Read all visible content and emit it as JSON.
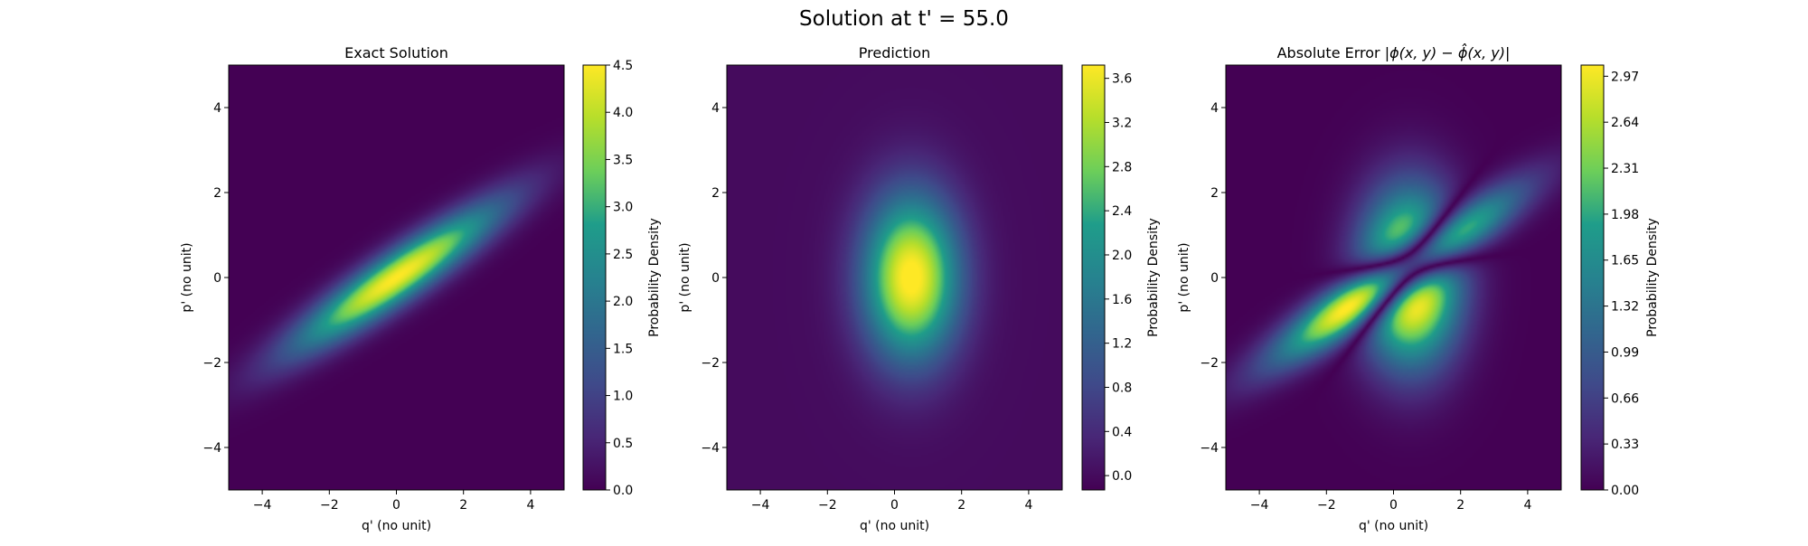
{
  "figure": {
    "suptitle": "Solution at t' = 55.0",
    "colormap": "viridis",
    "viridis_stops": [
      "#440154",
      "#482777",
      "#3f4a8a",
      "#31678e",
      "#26838f",
      "#1f9d8a",
      "#6cce5a",
      "#b6de2b",
      "#fee825"
    ]
  },
  "chart_data": [
    {
      "type": "heatmap",
      "title": "Exact Solution",
      "xlabel": "q' (no unit)",
      "ylabel": "p' (no unit)",
      "xlim": [
        -5,
        5
      ],
      "ylim": [
        -5,
        5
      ],
      "xticks": [
        -4,
        -2,
        0,
        2,
        4
      ],
      "yticks": [
        -4,
        -2,
        0,
        2,
        4
      ],
      "xtick_labels": [
        "−4",
        "−2",
        "0",
        "2",
        "4"
      ],
      "ytick_labels": [
        "−4",
        "−2",
        "0",
        "2",
        "4"
      ],
      "colorbar": {
        "label": "Probability Density",
        "range": [
          0.0,
          4.5
        ],
        "ticks": [
          0.0,
          0.5,
          1.0,
          1.5,
          2.0,
          2.5,
          3.0,
          3.5,
          4.0,
          4.5
        ],
        "tick_labels": [
          "0.0",
          "0.5",
          "1.0",
          "1.5",
          "2.0",
          "2.5",
          "3.0",
          "3.5",
          "4.0",
          "4.5"
        ]
      },
      "field": {
        "kind": "gaussian_sum",
        "components": [
          {
            "amp": 4.5,
            "cx": 0.0,
            "cy": 0.0,
            "sigma_major": 2.4,
            "sigma_minor": 0.42,
            "angle_deg": 28
          }
        ]
      }
    },
    {
      "type": "heatmap",
      "title": "Prediction",
      "xlabel": "q' (no unit)",
      "ylabel": "p' (no unit)",
      "xlim": [
        -5,
        5
      ],
      "ylim": [
        -5,
        5
      ],
      "xticks": [
        -4,
        -2,
        0,
        2,
        4
      ],
      "yticks": [
        -4,
        -2,
        0,
        2,
        4
      ],
      "xtick_labels": [
        "−4",
        "−2",
        "0",
        "2",
        "4"
      ],
      "ytick_labels": [
        "−4",
        "−2",
        "0",
        "2",
        "4"
      ],
      "colorbar": {
        "label": "Probability Density",
        "range": [
          -0.13,
          3.72
        ],
        "ticks": [
          0.0,
          0.4,
          0.8,
          1.2,
          1.6,
          2.0,
          2.4,
          2.8,
          3.2,
          3.6
        ],
        "tick_labels": [
          "0.0",
          "0.4",
          "0.8",
          "1.2",
          "1.6",
          "2.0",
          "2.4",
          "2.8",
          "3.2",
          "3.6"
        ]
      },
      "field": {
        "kind": "gaussian_sum",
        "components": [
          {
            "amp": 3.85,
            "cx": 0.5,
            "cy": 0.0,
            "sigma_major": 1.35,
            "sigma_minor": 1.0,
            "angle_deg": 90
          }
        ]
      }
    },
    {
      "type": "heatmap",
      "title": "Absolute Error",
      "title_math": "|ϕ(x, y) − ϕ̂(x, y)|",
      "xlabel": "q' (no unit)",
      "ylabel": "p' (no unit)",
      "xlim": [
        -5,
        5
      ],
      "ylim": [
        -5,
        5
      ],
      "xticks": [
        -4,
        -2,
        0,
        2,
        4
      ],
      "yticks": [
        -4,
        -2,
        0,
        2,
        4
      ],
      "xtick_labels": [
        "−4",
        "−2",
        "0",
        "2",
        "4"
      ],
      "ytick_labels": [
        "−4",
        "−2",
        "0",
        "2",
        "4"
      ],
      "colorbar": {
        "label": "Probability Density",
        "range": [
          0.0,
          3.05
        ],
        "ticks": [
          0.0,
          0.33,
          0.66,
          0.99,
          1.32,
          1.65,
          1.98,
          2.31,
          2.64,
          2.97
        ],
        "tick_labels": [
          "0.00",
          "0.33",
          "0.66",
          "0.99",
          "1.32",
          "1.65",
          "1.98",
          "2.31",
          "2.64",
          "2.97"
        ]
      },
      "field": {
        "kind": "abs_difference",
        "minuend": [
          {
            "amp": 4.5,
            "cx": 0.0,
            "cy": 0.0,
            "sigma_major": 2.4,
            "sigma_minor": 0.42,
            "angle_deg": 28
          }
        ],
        "subtrahend": [
          {
            "amp": 3.85,
            "cx": 0.5,
            "cy": 0.0,
            "sigma_major": 1.35,
            "sigma_minor": 1.0,
            "angle_deg": 90
          }
        ]
      }
    }
  ]
}
